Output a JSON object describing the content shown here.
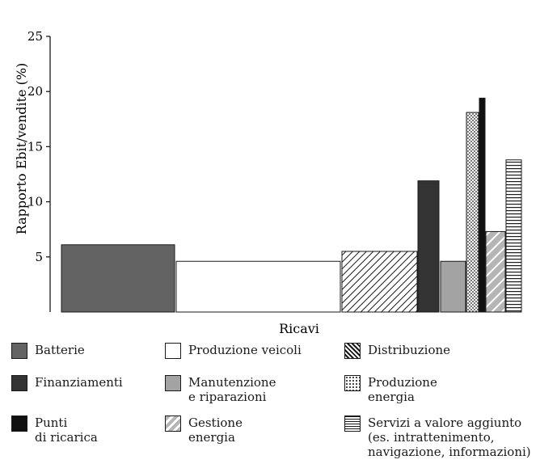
{
  "chart_data": {
    "type": "bar",
    "title": "",
    "xlabel": "Ricavi",
    "ylabel": "Rapporto Ebit/vendite (%)",
    "ylim": [
      0,
      25
    ],
    "yticks": [
      5,
      10,
      15,
      20,
      25
    ],
    "grid": false,
    "bar_widths": "variable (proportional to revenue share)",
    "series": [
      {
        "key": "batterie",
        "name": "Batterie",
        "value": 6.1,
        "color": "#636363",
        "pattern": "solid"
      },
      {
        "key": "produzione_veicoli",
        "name": "Produzione veicoli",
        "value": 4.6,
        "color": "#ffffff",
        "pattern": "solid"
      },
      {
        "key": "distribuzione",
        "name": "Distribuzione",
        "value": 5.5,
        "color": "#ffffff",
        "pattern": "diagonal"
      },
      {
        "key": "finanziamenti",
        "name": "Finanziamenti",
        "value": 11.9,
        "color": "#333333",
        "pattern": "solid"
      },
      {
        "key": "manutenzione",
        "name": "Manutenzione\ne riparazioni",
        "value": 4.6,
        "color": "#a3a3a3",
        "pattern": "solid"
      },
      {
        "key": "produzione_energia",
        "name": "Produzione\nenergia",
        "value": 18.1,
        "color": "#ffffff",
        "pattern": "dots"
      },
      {
        "key": "punti_ricarica",
        "name": "Punti\ndi ricarica",
        "value": 19.4,
        "color": "#111111",
        "pattern": "solid"
      },
      {
        "key": "gestione_energia",
        "name": "Gestione\nenergia",
        "value": 7.3,
        "color": "#b5b5b5",
        "pattern": "diagonal-wide"
      },
      {
        "key": "servizi",
        "name": "Servizi a valore aggiunto\n(es. intrattenimento,\nnavigazione, informazioni)",
        "value": 13.8,
        "color": "#ffffff",
        "pattern": "horizontal"
      }
    ],
    "legend_order": [
      "batterie",
      "produzione_veicoli",
      "distribuzione",
      "finanziamenti",
      "manutenzione",
      "produzione_energia",
      "punti_ricarica",
      "gestione_energia",
      "servizi"
    ],
    "legend_position": "bottom"
  }
}
